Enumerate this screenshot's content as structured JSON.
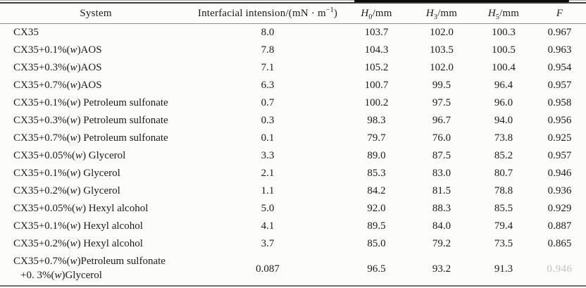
{
  "table": {
    "columns": [
      {
        "kind": "text",
        "label": "System"
      },
      {
        "kind": "unit",
        "pre": "Interfacial intension/(mN · m",
        "sup": "−1",
        "post": ")"
      },
      {
        "kind": "math",
        "base": "H",
        "sub": "0",
        "suffix": "/mm"
      },
      {
        "kind": "math",
        "base": "H",
        "sub": "3",
        "suffix": "/mm"
      },
      {
        "kind": "math",
        "base": "H",
        "sub": "5",
        "suffix": "/mm"
      },
      {
        "kind": "math",
        "base": "F",
        "sub": "",
        "suffix": ""
      }
    ],
    "rows": [
      {
        "system": [
          "CX35"
        ],
        "values": [
          "8.0",
          "103.7",
          "102.0",
          "100.3",
          "0.967"
        ]
      },
      {
        "system": [
          "CX35+0.1%(w)AOS"
        ],
        "values": [
          "7.8",
          "104.3",
          "103.5",
          "100.5",
          "0.963"
        ]
      },
      {
        "system": [
          "CX35+0.3%(w)AOS"
        ],
        "values": [
          "7.1",
          "105.2",
          "102.0",
          "100.4",
          "0.954"
        ]
      },
      {
        "system": [
          "CX35+0.7%(w)AOS"
        ],
        "values": [
          "6.3",
          "100.7",
          "99.5",
          "96.4",
          "0.957"
        ]
      },
      {
        "system": [
          "CX35+0.1%(w) Petroleum sulfonate"
        ],
        "values": [
          "0.7",
          "100.2",
          "97.5",
          "96.0",
          "0.958"
        ]
      },
      {
        "system": [
          "CX35+0.3%(w) Petroleum sulfonate"
        ],
        "values": [
          "0.3",
          "98.3",
          "96.7",
          "94.0",
          "0.956"
        ]
      },
      {
        "system": [
          "CX35+0.7%(w) Petroleum sulfonate"
        ],
        "values": [
          "0.1",
          "79.7",
          "76.0",
          "73.8",
          "0.925"
        ]
      },
      {
        "system": [
          "CX35+0.05%(w) Glycerol"
        ],
        "values": [
          "3.3",
          "89.0",
          "87.5",
          "85.2",
          "0.957"
        ]
      },
      {
        "system": [
          "CX35+0.1%(w) Glycerol"
        ],
        "values": [
          "2.1",
          "85.3",
          "83.0",
          "80.7",
          "0.946"
        ]
      },
      {
        "system": [
          "CX35+0.2%(w) Glycerol"
        ],
        "values": [
          "1.1",
          "84.2",
          "81.5",
          "78.8",
          "0.936"
        ]
      },
      {
        "system": [
          "CX35+0.05%(w) Hexyl alcohol"
        ],
        "values": [
          "5.0",
          "92.0",
          "88.3",
          "85.5",
          "0.929"
        ]
      },
      {
        "system": [
          "CX35+0.1%(w) Hexyl alcohol"
        ],
        "values": [
          "4.1",
          "89.5",
          "84.0",
          "79.4",
          "0.887"
        ]
      },
      {
        "system": [
          "CX35+0.2%(w) Hexyl alcohol"
        ],
        "values": [
          "3.7",
          "85.0",
          "79.2",
          "73.5",
          "0.865"
        ]
      },
      {
        "system": [
          "CX35+0.7%(w)Petroleum sulfonate",
          "+0. 3%(w)Glycerol"
        ],
        "values": [
          "0.087",
          "96.5",
          "93.2",
          "91.3",
          "0.946"
        ],
        "faded_last": true
      }
    ]
  }
}
